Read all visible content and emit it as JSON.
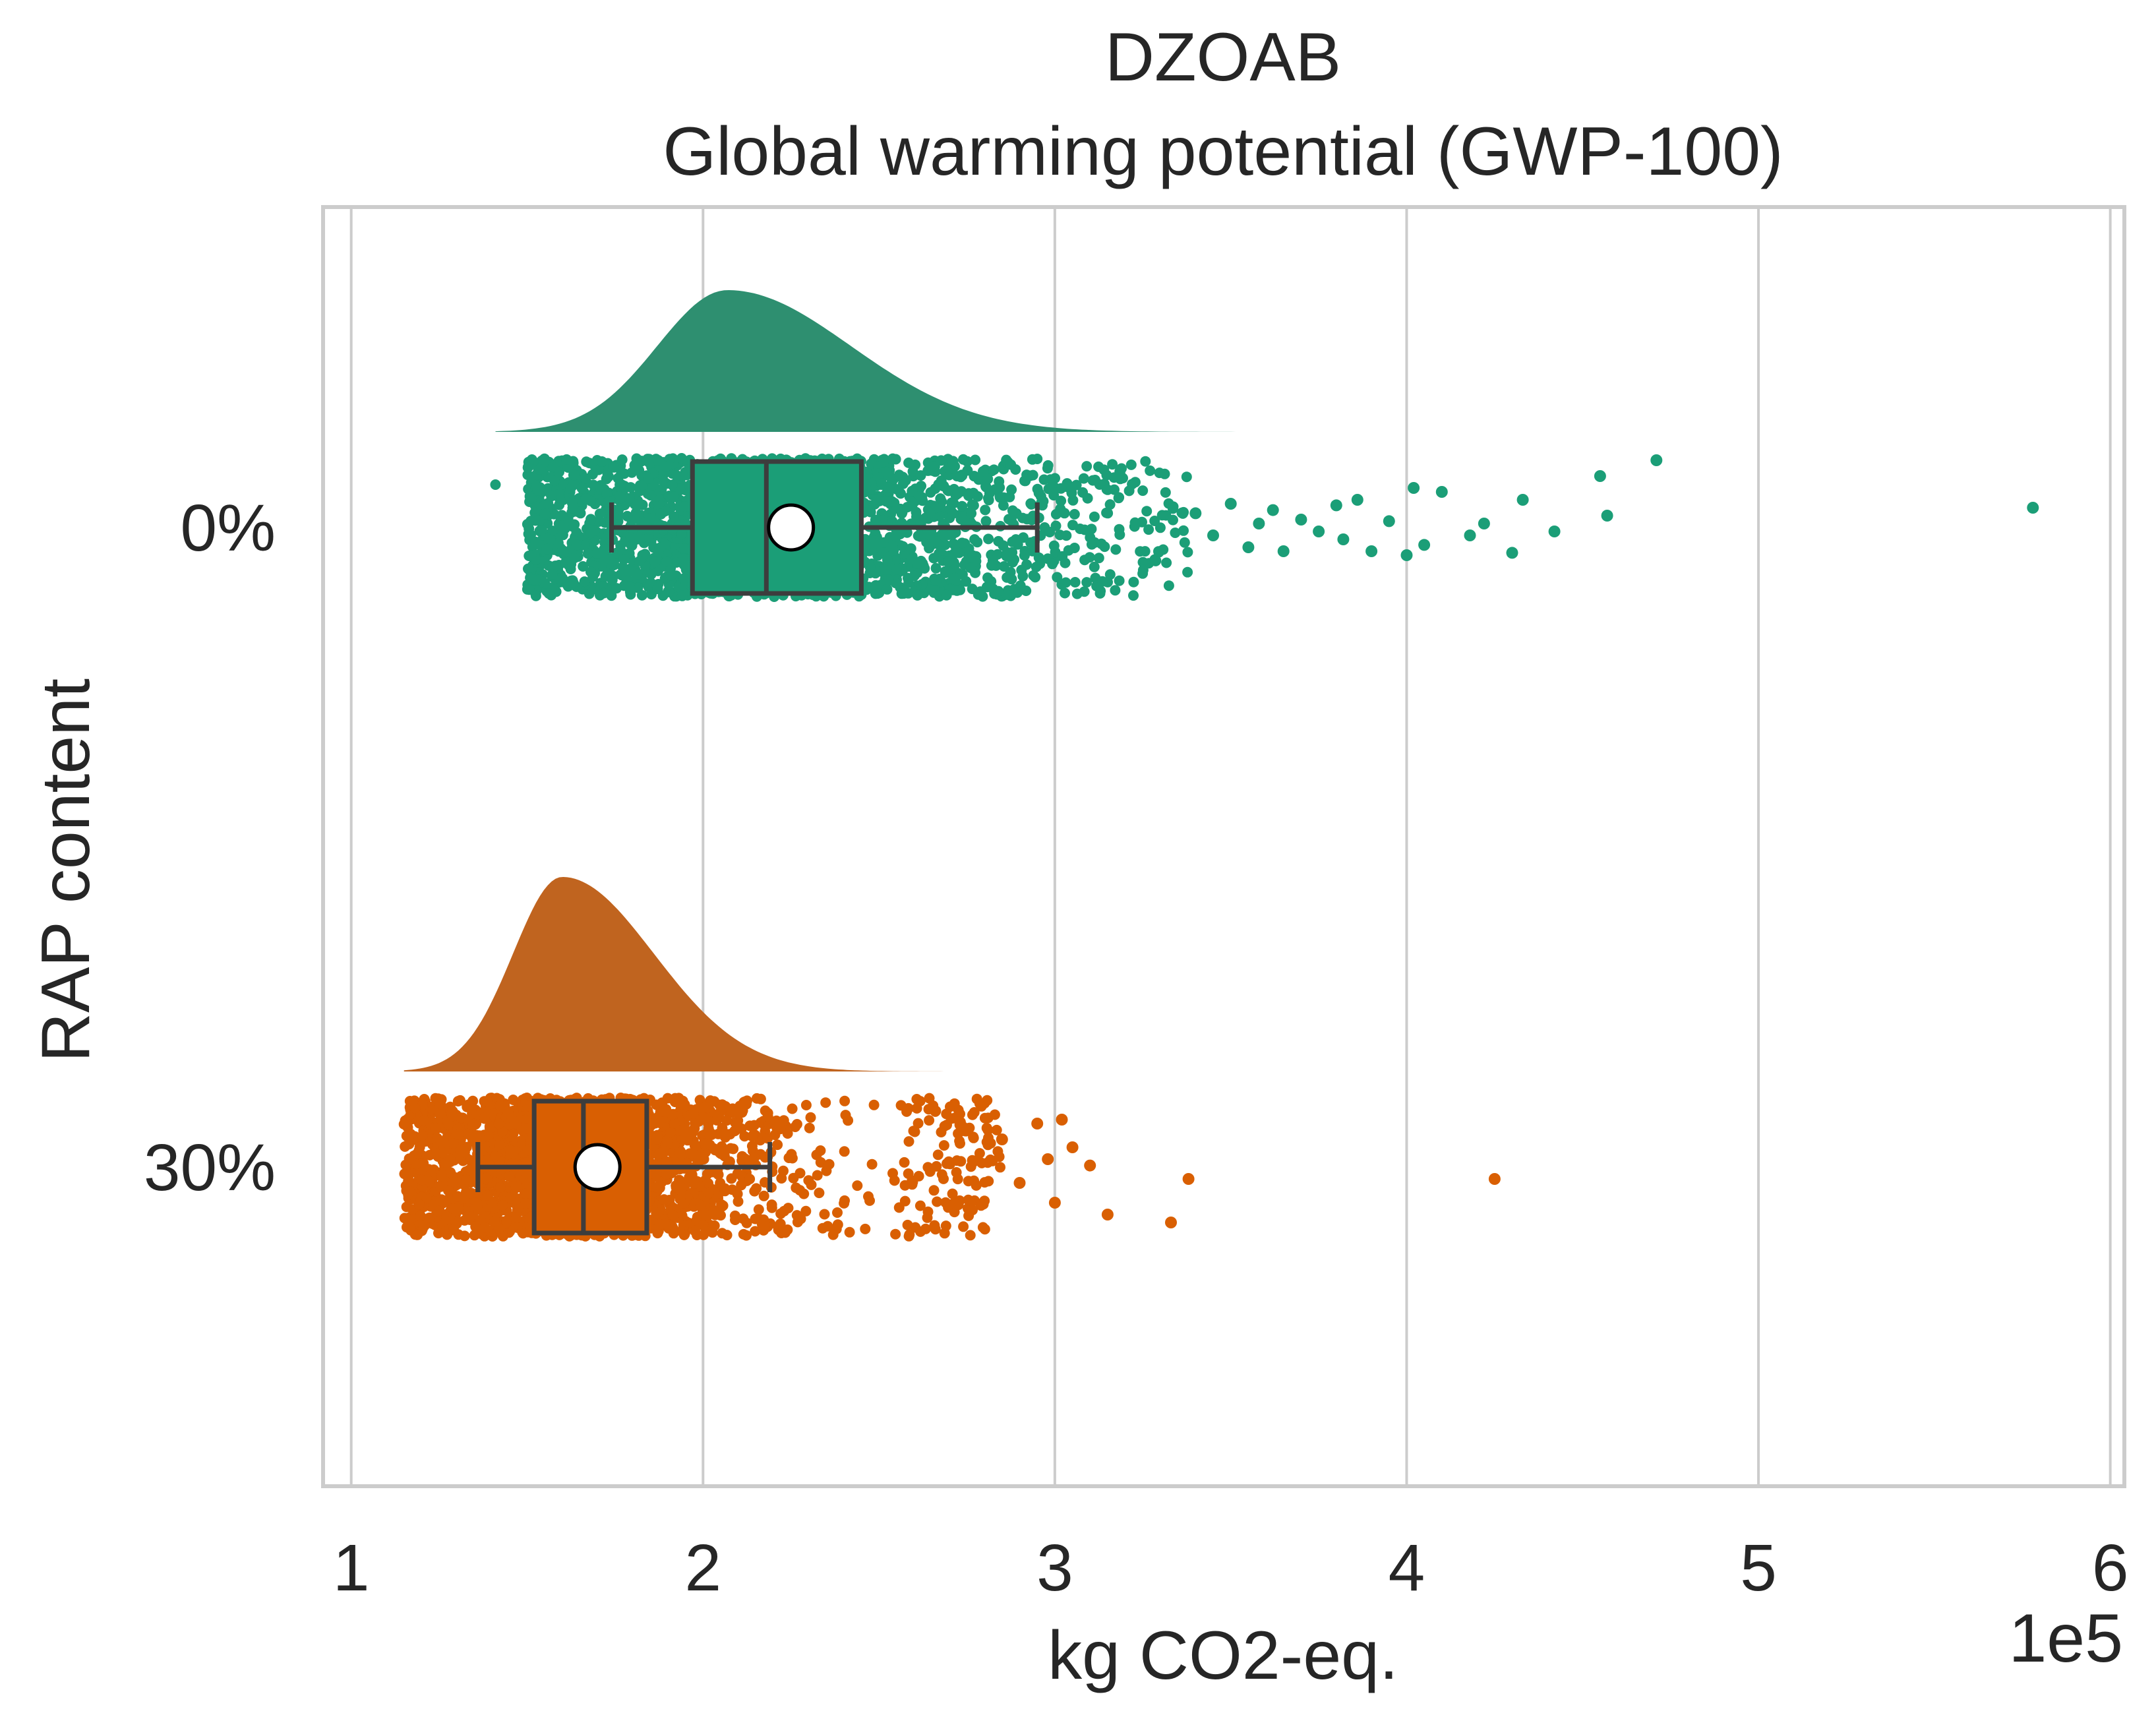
{
  "chart_data": {
    "type": "raincloud",
    "orientation": "horizontal",
    "title_line1": "DZOAB",
    "title_line2": "Global warming potential (GWP-100)",
    "xlabel": "kg CO2-eq.",
    "ylabel": "RAP content",
    "x_offset_label": "1e5",
    "x_scale": 100000,
    "xlim": [
      0.92,
      6.04
    ],
    "x_ticks": [
      1,
      2,
      3,
      4,
      5,
      6
    ],
    "x_tick_labels": [
      "1",
      "2",
      "3",
      "4",
      "5",
      "6"
    ],
    "grid": "vertical",
    "categories": [
      "0%",
      "30%"
    ],
    "series": [
      {
        "color": "#1b9e77",
        "cloud_color": "#2e8f70",
        "box": {
          "whisker_low": 1.74,
          "q1": 1.97,
          "median": 2.18,
          "q3": 2.45,
          "whisker_high": 2.95
        },
        "mean": 2.25,
        "density_range": [
          1.41,
          4.8
        ],
        "density_peak": 2.07,
        "density_spread_left": 0.2,
        "density_spread_right": 0.35,
        "dense_range": [
          1.5,
          3.0
        ],
        "scatter_extent": [
          1.41,
          3.38
        ],
        "n_dense_points": 2300,
        "outliers": [
          [
            3.4,
            0.18
          ],
          [
            3.45,
            -0.1
          ],
          [
            3.5,
            0.3
          ],
          [
            3.55,
            -0.25
          ],
          [
            3.58,
            0.05
          ],
          [
            3.62,
            0.22
          ],
          [
            3.65,
            -0.3
          ],
          [
            3.7,
            0.1
          ],
          [
            3.75,
            -0.05
          ],
          [
            3.8,
            0.28
          ],
          [
            3.82,
            -0.15
          ],
          [
            3.86,
            0.35
          ],
          [
            3.9,
            -0.3
          ],
          [
            3.95,
            0.08
          ],
          [
            4.0,
            -0.35
          ],
          [
            4.02,
            0.5
          ],
          [
            4.05,
            -0.22
          ],
          [
            4.1,
            0.45
          ],
          [
            4.18,
            -0.1
          ],
          [
            4.22,
            0.05
          ],
          [
            4.3,
            -0.32
          ],
          [
            4.33,
            0.35
          ],
          [
            4.42,
            -0.05
          ],
          [
            4.55,
            0.65
          ],
          [
            4.57,
            0.15
          ],
          [
            4.71,
            0.85
          ],
          [
            5.78,
            0.25
          ]
        ]
      },
      {
        "color": "#d95f02",
        "cloud_color": "#c0641f",
        "box": {
          "whisker_low": 1.36,
          "q1": 1.52,
          "median": 1.66,
          "q3": 1.84,
          "whisker_high": 2.19
        },
        "mean": 1.7,
        "density_range": [
          1.15,
          3.8
        ],
        "density_peak": 1.6,
        "density_spread_left": 0.14,
        "density_spread_right": 0.26,
        "dense_range": [
          1.15,
          2.55
        ],
        "scatter_extent": [
          1.15,
          2.85
        ],
        "n_dense_points": 2300,
        "outliers": [
          [
            2.85,
            0.35
          ],
          [
            2.9,
            -0.2
          ],
          [
            2.95,
            0.55
          ],
          [
            2.98,
            0.1
          ],
          [
            3.0,
            -0.45
          ],
          [
            3.02,
            0.6
          ],
          [
            3.05,
            0.25
          ],
          [
            3.1,
            0.02
          ],
          [
            3.15,
            -0.6
          ],
          [
            3.33,
            -0.7
          ],
          [
            3.38,
            -0.15
          ],
          [
            4.25,
            -0.15
          ]
        ]
      }
    ]
  }
}
